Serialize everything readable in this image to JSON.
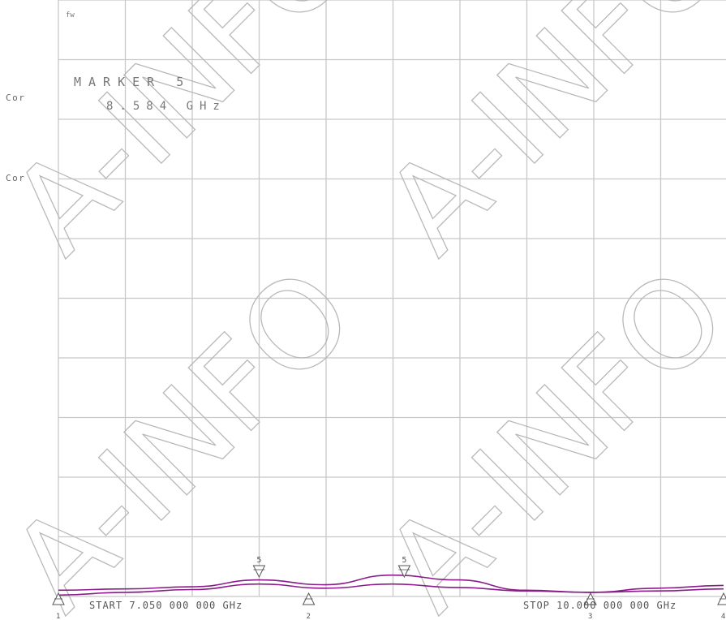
{
  "instrument": {
    "tag": "fw",
    "status_labels": [
      "Cor",
      "Cor"
    ],
    "marker_title": "MARKER 5",
    "marker_freq": "8.584 GHz",
    "start_label": "START 7.050 000 000 GHz",
    "stop_label": "STOP 10.000 000 000 GHz",
    "trace_color": "#8b1a8b",
    "grid_color": "#c8c8c8",
    "watermark_text": "A-INFO"
  },
  "chart_data": {
    "type": "line",
    "title": "",
    "xlabel": "",
    "ylabel": "",
    "xlim": [
      7.05,
      10.0
    ],
    "grid": true,
    "grid_divisions": {
      "x": 10,
      "y": 10
    },
    "series": [
      {
        "x": [
          7.05,
          7.35,
          7.64,
          7.94,
          8.23,
          8.53,
          8.82,
          9.12,
          9.41,
          9.71,
          10.0
        ],
        "y": [
          0.09,
          0.11,
          0.14,
          0.24,
          0.17,
          0.31,
          0.24,
          0.09,
          0.06,
          0.12,
          0.16
        ]
      },
      {
        "x": [
          7.05,
          7.35,
          7.64,
          7.94,
          8.23,
          8.53,
          8.82,
          9.12,
          9.41,
          9.71,
          10.0
        ],
        "y": [
          0.02,
          0.06,
          0.1,
          0.18,
          0.12,
          0.18,
          0.13,
          0.08,
          0.06,
          0.08,
          0.11
        ]
      }
    ],
    "markers": [
      {
        "id": "1",
        "x": 7.05,
        "kind": "up"
      },
      {
        "id": "5",
        "x": 7.94,
        "kind": "down"
      },
      {
        "id": "2",
        "x": 8.16,
        "kind": "up"
      },
      {
        "id": "5",
        "x": 8.584,
        "kind": "down"
      },
      {
        "id": "3",
        "x": 9.41,
        "kind": "up"
      },
      {
        "id": "4",
        "x": 10.0,
        "kind": "up"
      }
    ]
  }
}
